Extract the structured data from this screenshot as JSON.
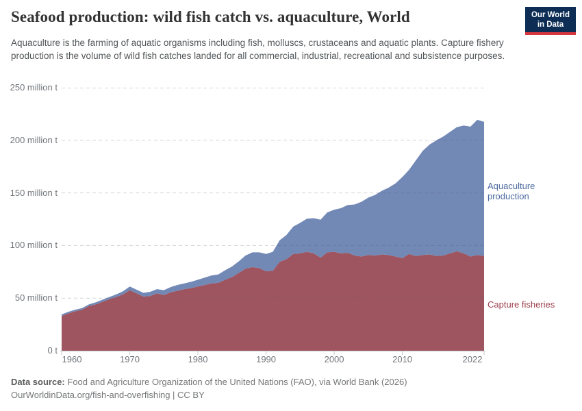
{
  "header": {
    "title": "Seafood production: wild fish catch vs. aquaculture, World",
    "subtitle": "Aquaculture is the farming of aquatic organisms including fish, molluscs, crustaceans and aquatic plants. Capture fishery production is the volume of wild fish catches landed for all commercial, industrial, recreational and subsistence purposes.",
    "logo": {
      "line1": "Our World",
      "line2": "in Data",
      "bg_color": "#0d2d55",
      "accent_color": "#d5353c"
    }
  },
  "chart_data": {
    "type": "area",
    "stacked": true,
    "title": "Seafood production: wild fish catch vs. aquaculture, World",
    "unit": "million tonnes",
    "ylim": [
      0,
      250
    ],
    "xlim": [
      1960,
      2022
    ],
    "grid": "dashed horizontal",
    "legend_position": "right of plot, area-aligned",
    "years": [
      1960,
      1961,
      1962,
      1963,
      1964,
      1965,
      1966,
      1967,
      1968,
      1969,
      1970,
      1971,
      1972,
      1973,
      1974,
      1975,
      1976,
      1977,
      1978,
      1979,
      1980,
      1981,
      1982,
      1983,
      1984,
      1985,
      1986,
      1987,
      1988,
      1989,
      1990,
      1991,
      1992,
      1993,
      1994,
      1995,
      1996,
      1997,
      1998,
      1999,
      2000,
      2001,
      2002,
      2003,
      2004,
      2005,
      2006,
      2007,
      2008,
      2009,
      2010,
      2011,
      2012,
      2013,
      2014,
      2015,
      2016,
      2017,
      2018,
      2019,
      2020,
      2021,
      2022
    ],
    "series": [
      {
        "name": "Capture fisheries",
        "color": "#9e5560",
        "label_color": "#9d3e4d",
        "values": [
          33,
          35.5,
          37.5,
          39,
          42.5,
          44,
          46.5,
          49,
          51,
          53.5,
          57.5,
          54.5,
          51.5,
          52,
          54.5,
          53,
          55.5,
          57,
          58.5,
          59.5,
          61,
          62.5,
          64,
          64.5,
          67.5,
          70,
          74,
          78,
          79.5,
          78.5,
          75.5,
          76,
          84.5,
          87,
          92,
          92.5,
          94,
          92.5,
          88.5,
          93.5,
          94,
          92.5,
          93,
          90.5,
          89.5,
          91,
          90.5,
          91.5,
          91,
          89.5,
          88,
          92,
          90,
          91,
          91.5,
          90,
          90.5,
          92.5,
          94.5,
          92.5,
          89.5,
          91,
          90
        ]
      },
      {
        "name": "Aquaculture production",
        "color": "#7288b5",
        "label_color": "#4a69a0",
        "values": [
          1.5,
          1.5,
          1.5,
          1.5,
          1.5,
          2,
          2,
          2,
          2.5,
          3,
          3.5,
          3.5,
          3.5,
          4,
          4,
          4.5,
          5,
          5.5,
          5.5,
          6,
          6.5,
          7,
          7.5,
          8,
          9,
          10,
          11,
          12.5,
          14,
          15,
          16.5,
          18,
          20.5,
          23,
          26,
          29,
          31.5,
          33.5,
          36,
          38,
          40,
          43,
          45.5,
          48.5,
          52,
          54.5,
          57.5,
          60.5,
          64,
          69.5,
          77,
          80,
          91,
          99,
          104.5,
          110,
          113,
          115.5,
          118,
          121.5,
          123.5,
          128.5,
          127.5
        ]
      }
    ],
    "y_ticks": [
      {
        "value": 0,
        "label": "0 t"
      },
      {
        "value": 50,
        "label": "50 million t"
      },
      {
        "value": 100,
        "label": "100 million t"
      },
      {
        "value": 150,
        "label": "150 million t"
      },
      {
        "value": 200,
        "label": "200 million t"
      },
      {
        "value": 250,
        "label": "250 million t"
      }
    ],
    "x_ticks": [
      1960,
      1970,
      1980,
      1990,
      2000,
      2010,
      2022
    ]
  },
  "footer": {
    "data_source_label": "Data source:",
    "data_source_text": "Food and Agriculture Organization of the United Nations (FAO), via World Bank (2026)",
    "note": "OurWorldinData.org/fish-and-overfishing | CC BY"
  }
}
